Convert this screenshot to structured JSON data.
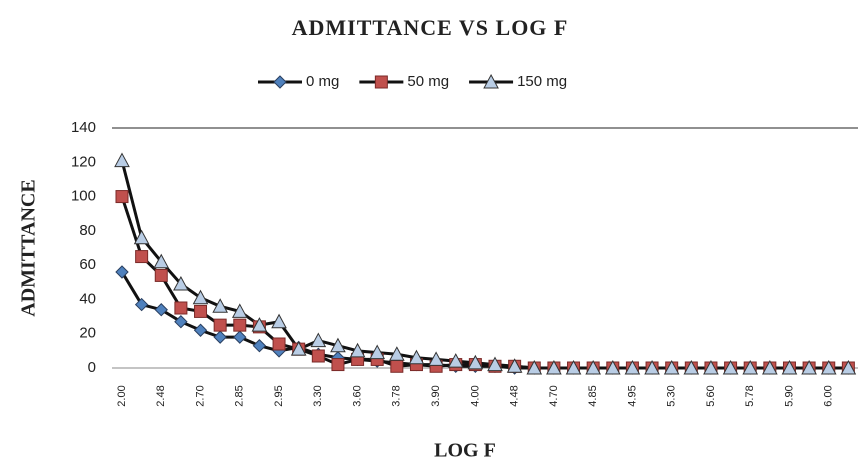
{
  "chart_data": {
    "type": "line",
    "title": "ADMITTANCE  VS LOG F",
    "x_label": "LOG F",
    "y_label": "ADMITTANCE",
    "categories": [
      "2.00",
      null,
      "2.48",
      null,
      "2.70",
      null,
      "2.85",
      null,
      "2.95",
      null,
      "3.30",
      null,
      "3.60",
      null,
      "3.78",
      null,
      "3.90",
      null,
      "4.00",
      null,
      "4.48",
      null,
      "4.70",
      null,
      "4.85",
      null,
      "4.95",
      null,
      "5.30",
      null,
      "5.60",
      null,
      "5.78",
      null,
      "5.90",
      null,
      "6.00",
      null
    ],
    "series": [
      {
        "name": "0 mg",
        "color": "#4f81bd",
        "marker": "diamond",
        "values": [
          56,
          37,
          34,
          27,
          22,
          18,
          18,
          13,
          10,
          12,
          8,
          6,
          5,
          4,
          3,
          2,
          2,
          1,
          1,
          1,
          0,
          0,
          0,
          0,
          0,
          0,
          0,
          0,
          0,
          0,
          0,
          0,
          0,
          0,
          0,
          0,
          0,
          0
        ]
      },
      {
        "name": "50 mg",
        "color": "#c0504d",
        "marker": "square",
        "values": [
          100,
          65,
          54,
          35,
          33,
          25,
          25,
          24,
          14,
          11,
          7,
          2,
          5,
          5,
          1,
          2,
          1,
          2,
          2,
          1,
          1,
          0,
          0,
          0,
          0,
          0,
          0,
          0,
          0,
          0,
          0,
          0,
          0,
          0,
          0,
          0,
          0,
          0
        ]
      },
      {
        "name": "150 mg",
        "color": "#b9cde5",
        "marker": "triangle",
        "values": [
          121,
          76,
          62,
          49,
          41,
          36,
          33,
          25,
          27,
          11,
          16,
          13,
          10,
          9,
          8,
          6,
          5,
          4,
          3,
          2,
          1,
          0,
          0,
          0,
          0,
          0,
          0,
          0,
          0,
          0,
          0,
          0,
          0,
          0,
          0,
          0,
          0,
          0
        ]
      }
    ],
    "ylim": [
      0,
      140
    ],
    "yticks": [
      0,
      20,
      40,
      60,
      80,
      100,
      120,
      140
    ],
    "grid": false,
    "legend": "top"
  }
}
